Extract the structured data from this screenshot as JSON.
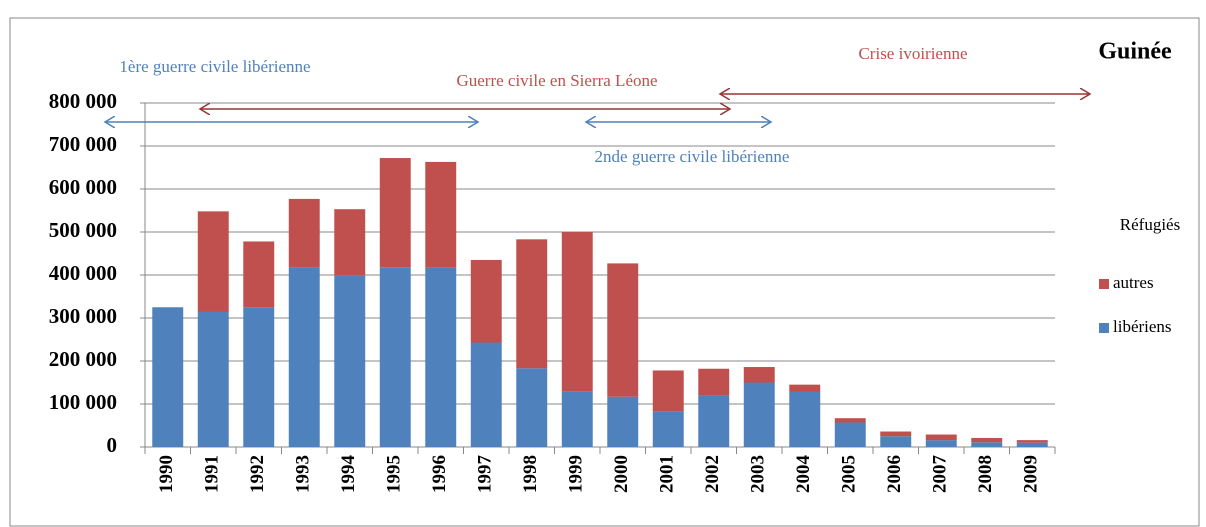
{
  "chart_data": {
    "type": "stacked_bar",
    "title": "Guinée",
    "legend_title": "Réfugiés",
    "annotations": [
      "1ère guerre civile libérienne",
      "Guerre civile en Sierra Léone",
      "Crise ivoirienne",
      "2nde guerre civile libérienne"
    ],
    "categories": [
      "1990",
      "1991",
      "1992",
      "1993",
      "1994",
      "1995",
      "1996",
      "1997",
      "1998",
      "1999",
      "2000",
      "2001",
      "2002",
      "2003",
      "2004",
      "2005",
      "2006",
      "2007",
      "2008",
      "2009"
    ],
    "series": [
      {
        "name": "libériens",
        "color": "#4f81bd",
        "values": [
          325000,
          314000,
          325000,
          417000,
          398000,
          418000,
          417000,
          243000,
          183000,
          130000,
          117000,
          82000,
          120000,
          150000,
          128000,
          57000,
          25000,
          16000,
          11000,
          10000
        ]
      },
      {
        "name": "autres",
        "color": "#c0504d",
        "values": [
          0,
          234000,
          153000,
          160000,
          155000,
          254000,
          246000,
          192000,
          300000,
          370000,
          310000,
          96000,
          62000,
          36000,
          17000,
          10000,
          11000,
          13000,
          10000,
          6000
        ]
      }
    ],
    "ylim": [
      0,
      800000
    ],
    "yticks": [
      0,
      {
        "value": 100000,
        "label": "100 000"
      },
      {
        "value": 200000,
        "label": "200 000"
      },
      {
        "value": 300000,
        "label": "300 000"
      },
      {
        "value": 400000,
        "label": "400 000"
      },
      {
        "value": 500000,
        "label": "500 000"
      },
      {
        "value": 600000,
        "label": "600 000"
      },
      {
        "value": 700000,
        "label": "700 000"
      },
      {
        "value": 800000,
        "label": "800 000"
      }
    ],
    "grid": true
  }
}
